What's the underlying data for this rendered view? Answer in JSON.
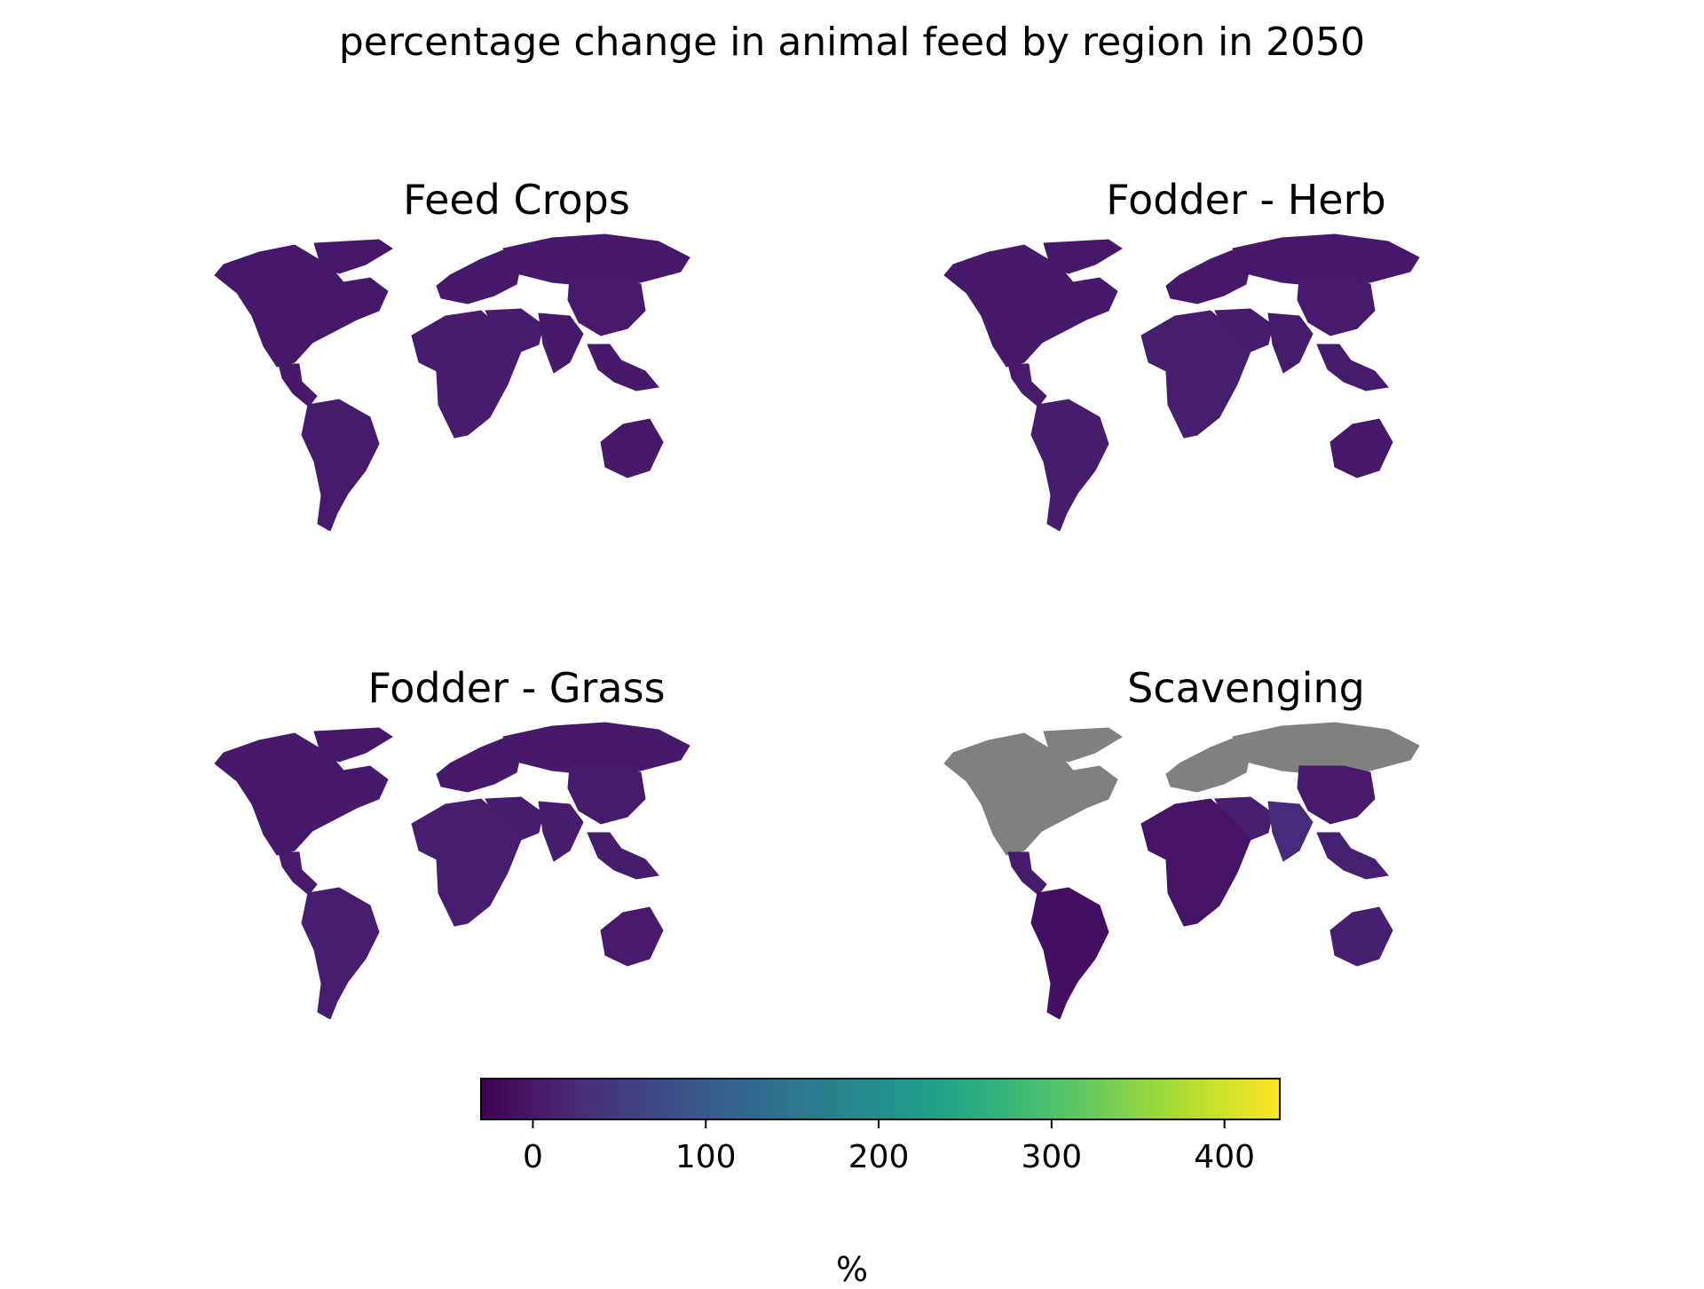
{
  "title": "percentage change in animal feed by region in 2050",
  "chart_data": {
    "type": "choropleth",
    "title": "percentage change in animal feed by region in 2050",
    "colormap": "viridis",
    "no_data_color": "#808080",
    "colorbar": {
      "label": "%",
      "range": [
        -30,
        432
      ],
      "ticks": [
        0,
        100,
        200,
        300,
        400
      ],
      "tick_labels": [
        "0",
        "100",
        "200",
        "300",
        "400"
      ]
    },
    "panels": [
      {
        "title": "Feed Crops",
        "regions": {
          "north_america": 0,
          "central_america": 2,
          "south_america": 4,
          "europe": 2,
          "russia": 1,
          "middle_east": 4,
          "africa": 5,
          "south_asia": 2,
          "china": 3,
          "southeast_asia": 2,
          "oceania": 1,
          "greenland": 0
        }
      },
      {
        "title": "Fodder - Herb",
        "regions": {
          "north_america": 1,
          "central_america": 3,
          "south_america": 6,
          "europe": 1,
          "russia": 1,
          "middle_east": 5,
          "africa": 7,
          "south_asia": 4,
          "china": 3,
          "southeast_asia": 4,
          "oceania": 2,
          "greenland": 0
        }
      },
      {
        "title": "Fodder - Grass",
        "regions": {
          "north_america": 1,
          "central_america": 3,
          "south_america": 8,
          "europe": 2,
          "russia": 1,
          "middle_east": 6,
          "africa": 8,
          "south_asia": 5,
          "china": 4,
          "southeast_asia": 5,
          "oceania": 3,
          "greenland": 0
        }
      },
      {
        "title": "Scavenging",
        "regions": {
          "north_america": null,
          "central_america": 5,
          "south_america": -12,
          "europe": null,
          "russia": null,
          "middle_east": 8,
          "africa": -5,
          "south_asia": 25,
          "china": 3,
          "southeast_asia": 12,
          "oceania": 10,
          "greenland": null
        }
      }
    ]
  }
}
